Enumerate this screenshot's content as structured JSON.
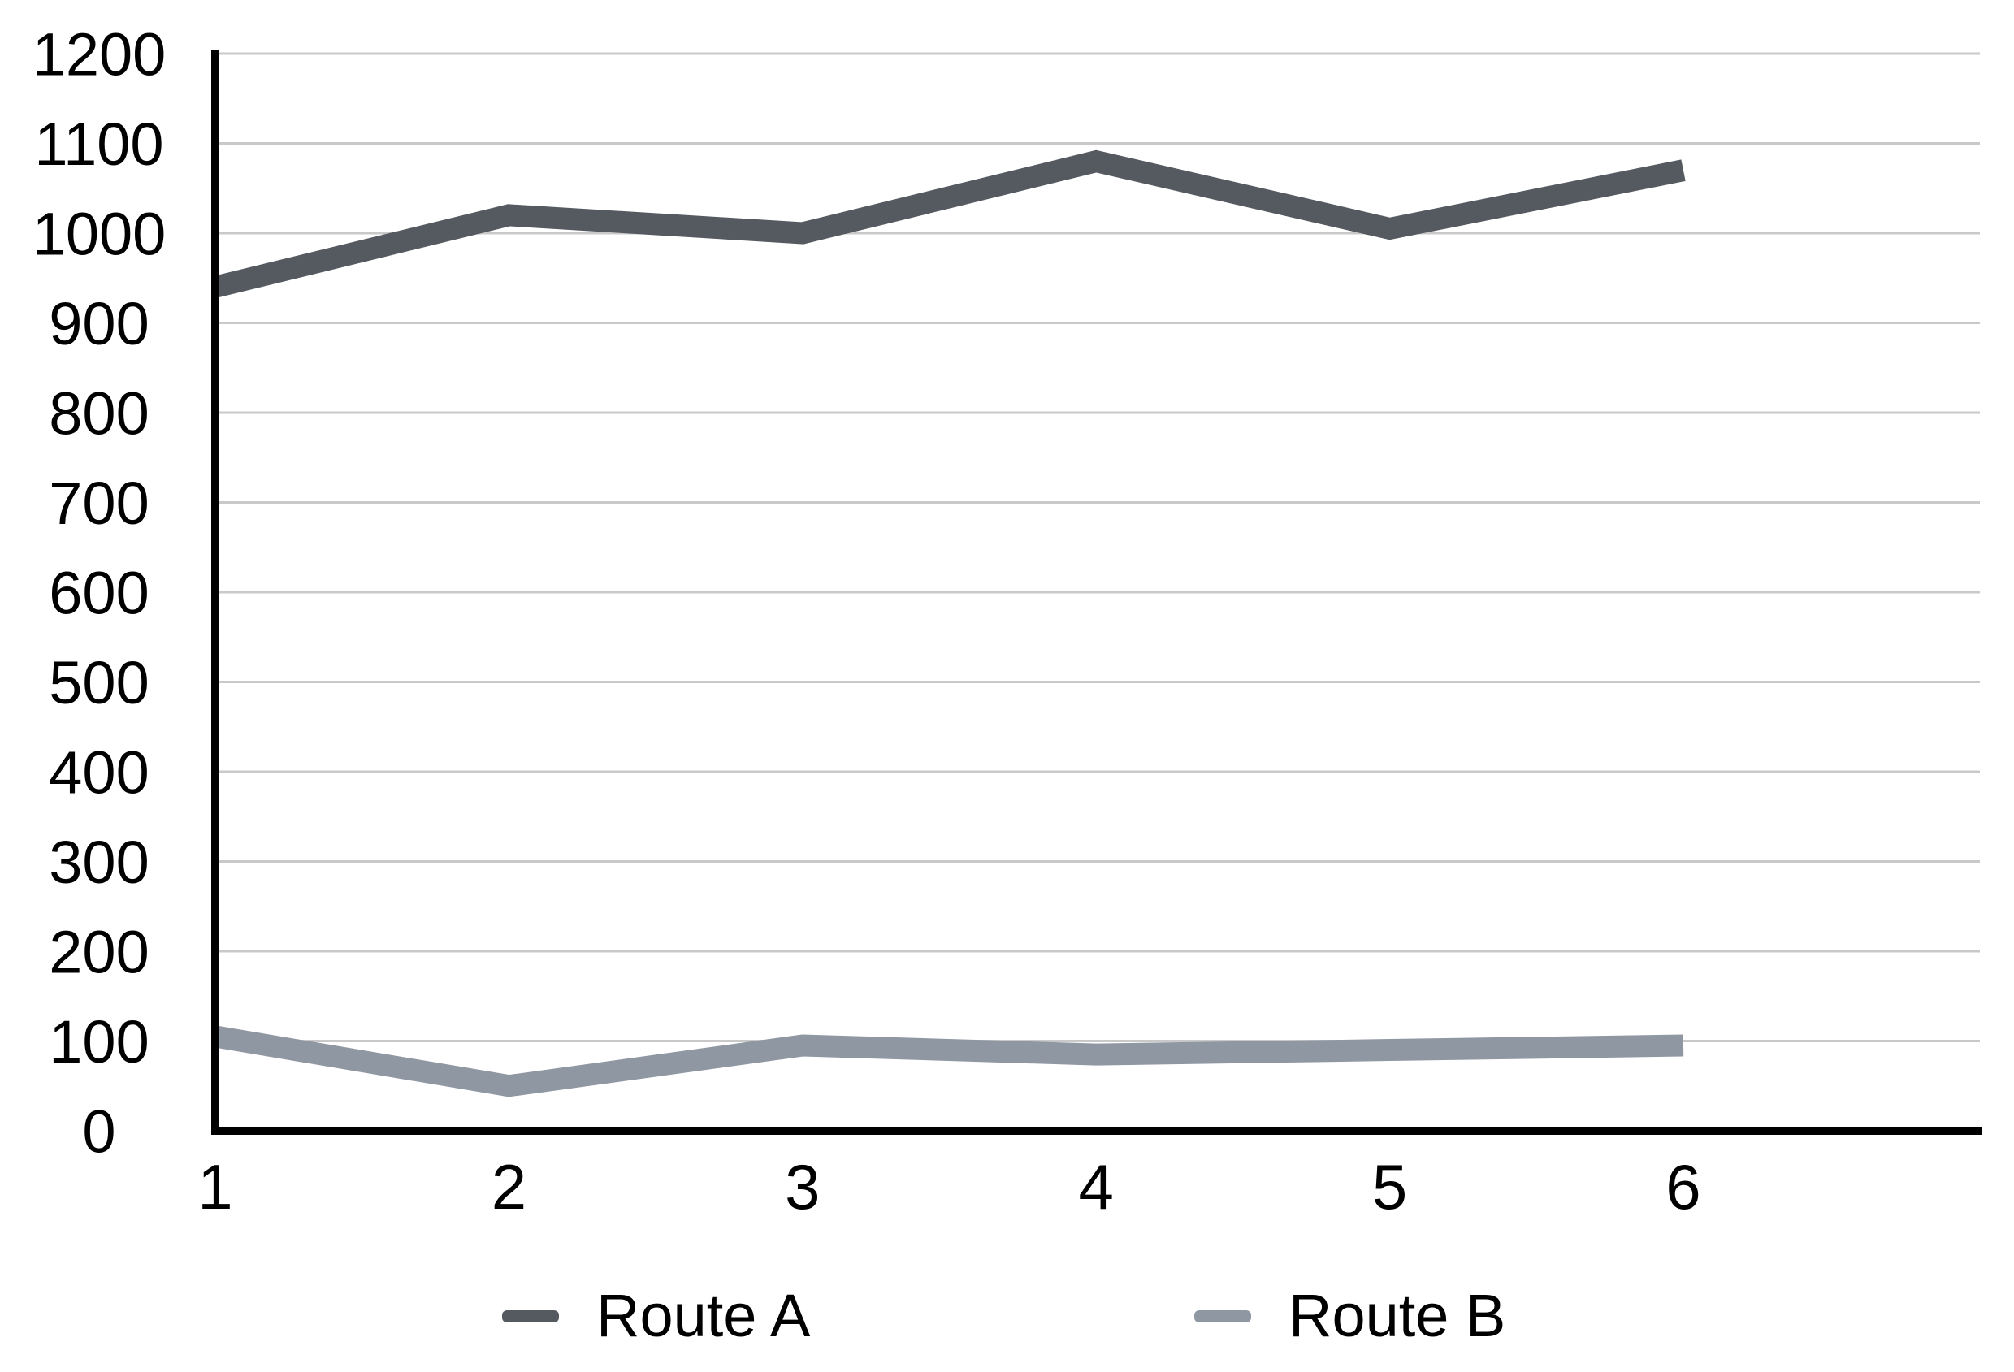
{
  "chart_data": {
    "type": "line",
    "title": "",
    "xlabel": "",
    "ylabel": "",
    "x": [
      1,
      2,
      3,
      4,
      5,
      6
    ],
    "x_tick_labels": [
      "1",
      "2",
      "3",
      "4",
      "5",
      "6"
    ],
    "y_tick_labels": [
      "0",
      "100",
      "200",
      "300",
      "400",
      "500",
      "600",
      "700",
      "800",
      "900",
      "1000",
      "1100",
      "1200"
    ],
    "ylim": [
      0,
      1200
    ],
    "y_tick_step": 100,
    "grid": "horizontal",
    "legend_position": "bottom",
    "series": [
      {
        "name": "Route A",
        "color": "#555a61",
        "values": [
          940,
          1020,
          1000,
          1080,
          1005,
          1070
        ]
      },
      {
        "name": "Route B",
        "color": "#8f97a3",
        "values": [
          105,
          50,
          95,
          85,
          90,
          95
        ]
      }
    ]
  },
  "colors": {
    "grid": "#c9c9c9",
    "axis": "#000000",
    "text": "#000000",
    "background": "#ffffff"
  }
}
